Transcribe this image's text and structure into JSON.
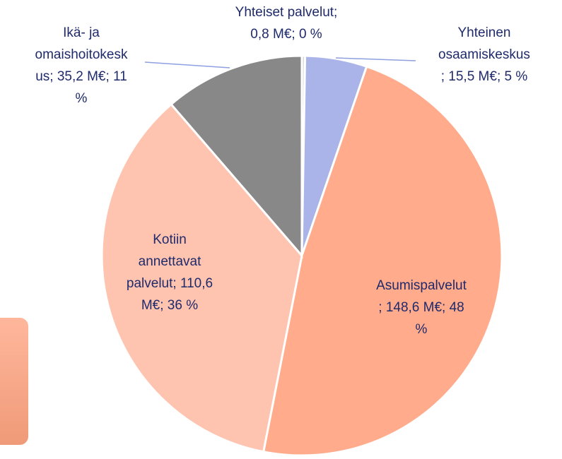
{
  "chart_data": {
    "type": "pie",
    "values": [
      0.8,
      15.5,
      148.6,
      110.6,
      35.2
    ],
    "value_labels": [
      [
        "Yhteiset palvelut;",
        "0,8 M€; 0 %"
      ],
      [
        "Yhteinen",
        "osaamiskeskus",
        "; 15,5 M€; 5 %"
      ],
      [
        "Asumispalvelut",
        "; 148,6 M€; 48",
        "%"
      ],
      [
        "Kotiin",
        "annettavat",
        "palvelut; 110,6",
        "M€; 36 %"
      ],
      [
        "Ikä- ja",
        "omaishoitokesk",
        "us; 35,2 M€; 11",
        "%"
      ]
    ],
    "colors": [
      "#d9d9d9",
      "#aab4e8",
      "#ffab8c",
      "#ffc4b0",
      "#888888"
    ]
  }
}
